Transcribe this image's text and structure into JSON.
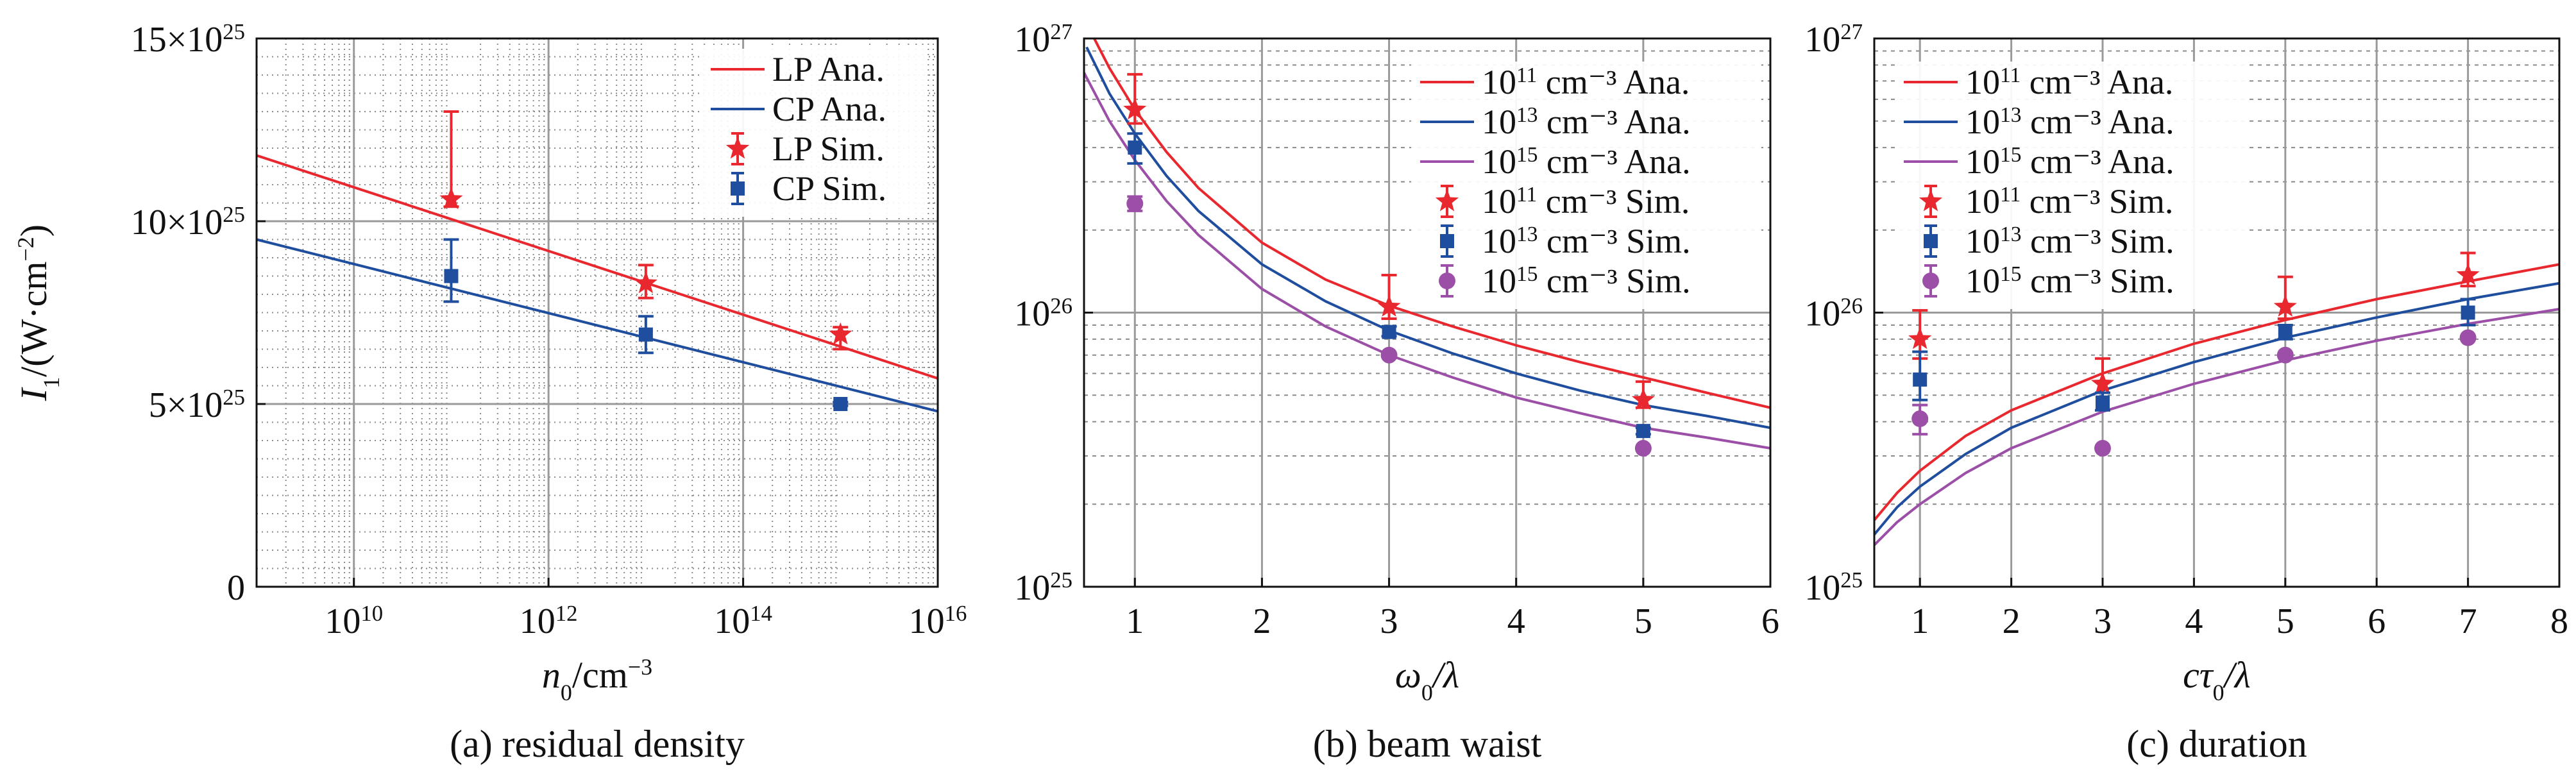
{
  "chart_data": [
    {
      "id": "a",
      "type": "line",
      "panel_label": "(a) residual density",
      "xlabel": {
        "base": "n",
        "sub": "0",
        "rest": "/cm",
        "sup": "−3"
      },
      "ylabel": {
        "base": "I",
        "sub": "1",
        "rest": "/(W·cm",
        "sup": "−2",
        "close": ")"
      },
      "xscale": "log",
      "yscale": "linear",
      "xlim": [
        1000000000.0,
        1e+16
      ],
      "ylim": [
        0,
        1.5e+26
      ],
      "x_ticks": [
        {
          "value": 10000000000.0,
          "base": "10",
          "exp": "10"
        },
        {
          "value": 1000000000000.0,
          "base": "10",
          "exp": "12"
        },
        {
          "value": 100000000000000.0,
          "base": "10",
          "exp": "14"
        },
        {
          "value": 1e+16,
          "base": "10",
          "exp": "16"
        }
      ],
      "y_ticks": [
        {
          "value": 0,
          "base": "0",
          "exp": ""
        },
        {
          "value": 5e+25,
          "base": "5×10",
          "exp": "25"
        },
        {
          "value": 1e+26,
          "base": "10×10",
          "exp": "25"
        },
        {
          "value": 1.5e+26,
          "base": "15×10",
          "exp": "25"
        }
      ],
      "legend": [
        {
          "label": "LP Ana.",
          "color": "#e8282e",
          "kind": "line"
        },
        {
          "label": "CP Ana.",
          "color": "#1f4e9e",
          "kind": "line"
        },
        {
          "label": "LP Sim.",
          "color": "#e8282e",
          "kind": "star"
        },
        {
          "label": "CP Sim.",
          "color": "#1f4e9e",
          "kind": "square"
        }
      ],
      "lines": [
        {
          "name": "LP Ana.",
          "color": "#e8282e",
          "x": [
            1000000000.0,
            1e+16
          ],
          "y": [
            1.18e+26,
            5.7e+25
          ]
        },
        {
          "name": "CP Ana.",
          "color": "#1f4e9e",
          "x": [
            1000000000.0,
            1e+16
          ],
          "y": [
            9.5e+25,
            4.8e+25
          ]
        }
      ],
      "points": [
        {
          "name": "LP Sim.",
          "color": "#e8282e",
          "marker": "star",
          "x": [
            100000000000.0,
            10000000000000.0,
            1000000000000000.0
          ],
          "y": [
            1.06e+26,
            8.3e+25,
            6.9e+25
          ],
          "err_lo": [
            2e+24,
            4e+24,
            4e+24
          ],
          "err_hi": [
            2.4e+25,
            5e+24,
            2e+24
          ]
        },
        {
          "name": "CP Sim.",
          "color": "#1f4e9e",
          "marker": "square",
          "x": [
            100000000000.0,
            10000000000000.0,
            1000000000000000.0
          ],
          "y": [
            8.5e+25,
            6.9e+25,
            5e+25
          ],
          "err_lo": [
            7e+24,
            5e+24,
            5e+23
          ],
          "err_hi": [
            1e+25,
            5e+24,
            5e+23
          ]
        }
      ]
    },
    {
      "id": "b",
      "type": "line",
      "panel_label": "(b) beam waist",
      "xlabel": {
        "base": "ω",
        "sub": "0",
        "rest": "/λ",
        "sup": ""
      },
      "ylabel": null,
      "xscale": "linear",
      "yscale": "log",
      "xlim": [
        0.6,
        6
      ],
      "ylim": [
        1e+25,
        1e+27
      ],
      "x_ticks": [
        {
          "value": 1,
          "base": "1",
          "exp": ""
        },
        {
          "value": 2,
          "base": "2",
          "exp": ""
        },
        {
          "value": 3,
          "base": "3",
          "exp": ""
        },
        {
          "value": 4,
          "base": "4",
          "exp": ""
        },
        {
          "value": 5,
          "base": "5",
          "exp": ""
        },
        {
          "value": 6,
          "base": "6",
          "exp": ""
        }
      ],
      "y_ticks": [
        {
          "value": 1e+25,
          "base": "10",
          "exp": "25"
        },
        {
          "value": 1e+26,
          "base": "10",
          "exp": "26"
        },
        {
          "value": 1e+27,
          "base": "10",
          "exp": "27"
        }
      ],
      "legend": [
        {
          "label": " cm⁻³ Ana.",
          "pre": "10",
          "exp": "11",
          "color": "#e8282e",
          "kind": "line"
        },
        {
          "label": " cm⁻³ Ana.",
          "pre": "10",
          "exp": "13",
          "color": "#1f4e9e",
          "kind": "line"
        },
        {
          "label": " cm⁻³ Ana.",
          "pre": "10",
          "exp": "15",
          "color": "#9b4fa6",
          "kind": "line"
        },
        {
          "label": " cm⁻³ Sim.",
          "pre": "10",
          "exp": "11",
          "color": "#e8282e",
          "kind": "star"
        },
        {
          "label": " cm⁻³ Sim.",
          "pre": "10",
          "exp": "13",
          "color": "#1f4e9e",
          "kind": "square"
        },
        {
          "label": " cm⁻³ Sim.",
          "pre": "10",
          "exp": "15",
          "color": "#9b4fa6",
          "kind": "circle"
        }
      ],
      "lines": [
        {
          "name": "1e11 Ana.",
          "color": "#e8282e",
          "x": [
            0.68,
            0.8,
            1,
            1.25,
            1.5,
            2,
            2.5,
            3,
            3.5,
            4,
            4.5,
            5,
            5.5,
            6
          ],
          "y": [
            1e+27,
            7.8e+26,
            5.5e+26,
            3.85e+26,
            2.85e+26,
            1.8e+26,
            1.32e+26,
            1.06e+26,
            8.9e+25,
            7.6e+25,
            6.6e+25,
            5.8e+25,
            5.1e+25,
            4.5e+25
          ]
        },
        {
          "name": "1e13 Ana.",
          "color": "#1f4e9e",
          "x": [
            0.62,
            0.8,
            1,
            1.25,
            1.5,
            2,
            2.5,
            3,
            3.5,
            4,
            4.5,
            5,
            5.5,
            6
          ],
          "y": [
            9.3e+26,
            6.3e+26,
            4.5e+26,
            3.15e+26,
            2.35e+26,
            1.5e+26,
            1.1e+26,
            8.6e+25,
            7.1e+25,
            6e+25,
            5.2e+25,
            4.6e+25,
            4.2e+25,
            3.8e+25
          ]
        },
        {
          "name": "1e15 Ana.",
          "color": "#9b4fa6",
          "x": [
            0.6,
            0.8,
            1,
            1.25,
            1.5,
            2,
            2.5,
            3,
            3.5,
            4,
            4.5,
            5,
            5.5,
            6
          ],
          "y": [
            7.5e+26,
            5e+26,
            3.6e+26,
            2.55e+26,
            1.92e+26,
            1.22e+26,
            8.9e+25,
            7e+25,
            5.8e+25,
            4.9e+25,
            4.3e+25,
            3.8e+25,
            3.5e+25,
            3.2e+25
          ]
        }
      ],
      "points": [
        {
          "name": "1e11 Sim.",
          "color": "#e8282e",
          "marker": "star",
          "x": [
            1,
            3,
            5
          ],
          "y": [
            5.5e+26,
            1.05e+26,
            4.8e+25
          ],
          "err_lo": [
            6e+25,
            1e+25,
            3e+24
          ],
          "err_hi": [
            1.9e+26,
            3.2e+25,
            8e+24
          ]
        },
        {
          "name": "1e13 Sim.",
          "color": "#1f4e9e",
          "marker": "square",
          "x": [
            1,
            3,
            5
          ],
          "y": [
            4e+26,
            8.5e+25,
            3.7e+25
          ],
          "err_lo": [
            5e+25,
            3e+24,
            1e+24
          ],
          "err_hi": [
            5e+25,
            4e+24,
            1e+24
          ]
        },
        {
          "name": "1e15 Sim.",
          "color": "#9b4fa6",
          "marker": "circle",
          "x": [
            1,
            3,
            5
          ],
          "y": [
            2.5e+26,
            7e+25,
            3.2e+25
          ],
          "err_lo": [
            1.5e+25,
            0,
            0
          ],
          "err_hi": [
            1.5e+25,
            0,
            0
          ]
        }
      ]
    },
    {
      "id": "c",
      "type": "line",
      "panel_label": "(c) duration",
      "xlabel": {
        "base": "cτ",
        "sub": "0",
        "rest": "/λ",
        "sup": ""
      },
      "ylabel": null,
      "xscale": "linear",
      "yscale": "log",
      "xlim": [
        0.5,
        8
      ],
      "ylim": [
        1e+25,
        1e+27
      ],
      "x_ticks": [
        {
          "value": 1,
          "base": "1",
          "exp": ""
        },
        {
          "value": 2,
          "base": "2",
          "exp": ""
        },
        {
          "value": 3,
          "base": "3",
          "exp": ""
        },
        {
          "value": 4,
          "base": "4",
          "exp": ""
        },
        {
          "value": 5,
          "base": "5",
          "exp": ""
        },
        {
          "value": 6,
          "base": "6",
          "exp": ""
        },
        {
          "value": 7,
          "base": "7",
          "exp": ""
        },
        {
          "value": 8,
          "base": "8",
          "exp": ""
        }
      ],
      "y_ticks": [
        {
          "value": 1e+25,
          "base": "10",
          "exp": "25"
        },
        {
          "value": 1e+26,
          "base": "10",
          "exp": "26"
        },
        {
          "value": 1e+27,
          "base": "10",
          "exp": "27"
        }
      ],
      "legend": [
        {
          "label": " cm⁻³ Ana.",
          "pre": "10",
          "exp": "11",
          "color": "#e8282e",
          "kind": "line"
        },
        {
          "label": " cm⁻³ Ana.",
          "pre": "10",
          "exp": "13",
          "color": "#1f4e9e",
          "kind": "line"
        },
        {
          "label": " cm⁻³ Ana.",
          "pre": "10",
          "exp": "15",
          "color": "#9b4fa6",
          "kind": "line"
        },
        {
          "label": " cm⁻³ Sim.",
          "pre": "10",
          "exp": "11",
          "color": "#e8282e",
          "kind": "star"
        },
        {
          "label": " cm⁻³ Sim.",
          "pre": "10",
          "exp": "13",
          "color": "#1f4e9e",
          "kind": "square"
        },
        {
          "label": " cm⁻³ Sim.",
          "pre": "10",
          "exp": "15",
          "color": "#9b4fa6",
          "kind": "circle"
        }
      ],
      "lines": [
        {
          "name": "1e11 Ana.",
          "color": "#e8282e",
          "x": [
            0.5,
            0.75,
            1,
            1.5,
            2,
            3,
            4,
            5,
            6,
            7,
            8
          ],
          "y": [
            1.75e+25,
            2.2e+25,
            2.65e+25,
            3.55e+25,
            4.4e+25,
            6e+25,
            7.7e+25,
            9.4e+25,
            1.12e+26,
            1.3e+26,
            1.5e+26
          ]
        },
        {
          "name": "1e13 Ana.",
          "color": "#1f4e9e",
          "x": [
            0.5,
            0.75,
            1,
            1.5,
            2,
            3,
            4,
            5,
            6,
            7,
            8
          ],
          "y": [
            1.55e+25,
            1.95e+25,
            2.32e+25,
            3.05e+25,
            3.8e+25,
            5.2e+25,
            6.6e+25,
            8.1e+25,
            9.6e+25,
            1.12e+26,
            1.28e+26
          ]
        },
        {
          "name": "1e15 Ana.",
          "color": "#9b4fa6",
          "x": [
            0.5,
            0.75,
            1,
            1.5,
            2,
            3,
            4,
            5,
            6,
            7,
            8
          ],
          "y": [
            1.42e+25,
            1.72e+25,
            2e+25,
            2.6e+25,
            3.2e+25,
            4.35e+25,
            5.5e+25,
            6.7e+25,
            7.9e+25,
            9.1e+25,
            1.03e+26
          ]
        }
      ],
      "points": [
        {
          "name": "1e11 Sim.",
          "color": "#e8282e",
          "marker": "star",
          "x": [
            1,
            3,
            5,
            7
          ],
          "y": [
            8e+25,
            5.5e+25,
            1.05e+26,
            1.37e+26
          ],
          "err_lo": [
            1.2e+25,
            4e+24,
            1e+25,
            1.2e+25
          ],
          "err_hi": [
            2.2e+25,
            1.3e+25,
            3e+25,
            2.8e+25
          ]
        },
        {
          "name": "1e13 Sim.",
          "color": "#1f4e9e",
          "marker": "square",
          "x": [
            1,
            3,
            5,
            7
          ],
          "y": [
            5.7e+25,
            4.7e+25,
            8.5e+25,
            1e+26
          ],
          "err_lo": [
            9e+24,
            3e+24,
            5e+24,
            1e+25
          ],
          "err_hi": [
            1.5e+25,
            4e+24,
            5e+24,
            1.2e+25
          ]
        },
        {
          "name": "1e15 Sim.",
          "color": "#9b4fa6",
          "marker": "circle",
          "x": [
            1,
            3,
            5,
            7
          ],
          "y": [
            4.1e+25,
            3.2e+25,
            7e+25,
            8.1e+25
          ],
          "err_lo": [
            5e+24,
            0,
            0,
            0
          ],
          "err_hi": [
            5e+24,
            0,
            0,
            0
          ]
        }
      ]
    }
  ]
}
